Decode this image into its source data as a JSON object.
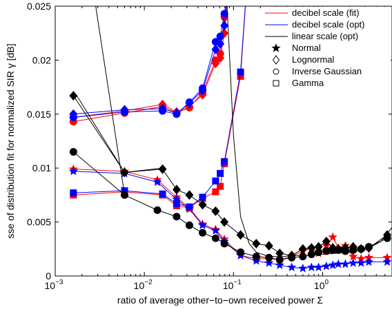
{
  "chart_data": {
    "type": "line",
    "xscale": "log",
    "xlim": [
      0.001,
      6.0
    ],
    "ylim": [
      0,
      0.025
    ],
    "xlabel": "ratio of average other−to−own received power Σ",
    "ylabel": "sse of distribution fit for normalized SIR γ [dB]",
    "x_ticks": [
      {
        "value": 0.001,
        "base": "10",
        "exp": "−3"
      },
      {
        "value": 0.01,
        "base": "10",
        "exp": "−2"
      },
      {
        "value": 0.1,
        "base": "10",
        "exp": "−1"
      },
      {
        "value": 1,
        "base": "10",
        "exp": "0"
      }
    ],
    "y_ticks": [
      {
        "value": 0,
        "label": "0"
      },
      {
        "value": 0.005,
        "label": "0.005"
      },
      {
        "value": 0.01,
        "label": "0.01"
      },
      {
        "value": 0.015,
        "label": "0.015"
      },
      {
        "value": 0.02,
        "label": "0.02"
      },
      {
        "value": 0.025,
        "label": "0.025"
      }
    ],
    "grid": false,
    "legend_position": "top-right",
    "legend_lines": [
      {
        "label": "decibel scale (fit)",
        "color": "#ff0000"
      },
      {
        "label": "decibel scale (opt)",
        "color": "#0000ff"
      },
      {
        "label": "linear scale (opt)",
        "color": "#000000"
      }
    ],
    "legend_markers": [
      {
        "label": "Normal",
        "marker": "star"
      },
      {
        "label": "Lognormal",
        "marker": "diamond"
      },
      {
        "label": "Inverse Gaussian",
        "marker": "circle"
      },
      {
        "label": "Gamma",
        "marker": "square"
      }
    ],
    "series": [
      {
        "color": "#ff0000",
        "marker": "diamond",
        "x": [
          0.0016,
          0.006,
          0.016,
          0.023,
          0.032,
          0.045,
          0.063,
          0.071,
          0.079,
          0.1
        ],
        "y": [
          0.0147,
          0.0153,
          0.0159,
          0.0152,
          0.0157,
          0.0168,
          0.0197,
          0.0202,
          0.0225,
          0.03
        ]
      },
      {
        "color": "#ff0000",
        "marker": "circle",
        "x": [
          0.0016,
          0.006,
          0.016,
          0.023,
          0.032,
          0.045,
          0.063,
          0.071,
          0.079,
          0.1
        ],
        "y": [
          0.0143,
          0.0151,
          0.0157,
          0.0151,
          0.0156,
          0.017,
          0.02,
          0.0206,
          0.024,
          0.03
        ]
      },
      {
        "color": "#0000ff",
        "marker": "diamond",
        "x": [
          0.0016,
          0.006,
          0.016,
          0.023,
          0.032,
          0.045,
          0.063,
          0.071,
          0.079,
          0.1
        ],
        "y": [
          0.015,
          0.0154,
          0.0155,
          0.0151,
          0.016,
          0.0172,
          0.021,
          0.0215,
          0.0232,
          0.03
        ]
      },
      {
        "color": "#0000ff",
        "marker": "circle",
        "x": [
          0.0016,
          0.006,
          0.016,
          0.023,
          0.032,
          0.045,
          0.063,
          0.071,
          0.079,
          0.1
        ],
        "y": [
          0.0147,
          0.0152,
          0.0153,
          0.015,
          0.0161,
          0.0174,
          0.0217,
          0.0222,
          0.0243,
          0.03
        ]
      },
      {
        "color": "#ff0000",
        "marker": "star",
        "x": [
          0.0016,
          0.006,
          0.014,
          0.023,
          0.032,
          0.045,
          0.063,
          0.079,
          0.12,
          0.18,
          0.25,
          0.33,
          0.45,
          0.6,
          0.75,
          0.9,
          1.1,
          1.3,
          1.5,
          1.8,
          2.2,
          2.7,
          3.3,
          5.3
        ],
        "y": [
          0.0099,
          0.0097,
          0.0089,
          0.0073,
          0.0063,
          0.0048,
          0.0043,
          0.0034,
          0.0019,
          0.0016,
          0.0016,
          0.0015,
          0.0018,
          0.0023,
          0.0026,
          0.0021,
          0.0028,
          0.0036,
          0.0026,
          0.0028,
          0.0018,
          0.0016,
          0.0017,
          0.0017
        ]
      },
      {
        "color": "#0000ff",
        "marker": "star",
        "x": [
          0.0016,
          0.006,
          0.014,
          0.023,
          0.032,
          0.045,
          0.063,
          0.079,
          0.12,
          0.18,
          0.25,
          0.33,
          0.45,
          0.6,
          0.75,
          0.9,
          1.1,
          1.3,
          1.5,
          1.8,
          2.2,
          2.7,
          3.3,
          5.3
        ],
        "y": [
          0.0097,
          0.0095,
          0.0087,
          0.0071,
          0.0062,
          0.0047,
          0.0042,
          0.0032,
          0.0019,
          0.0014,
          0.0012,
          0.001,
          0.0008,
          0.0007,
          0.0008,
          0.0008,
          0.0009,
          0.001,
          0.0011,
          0.0011,
          0.0012,
          0.0012,
          0.0013,
          0.0013
        ]
      },
      {
        "color": "#ff0000",
        "marker": "square",
        "x": [
          0.0016,
          0.006,
          0.016,
          0.023,
          0.032,
          0.045,
          0.063,
          0.071,
          0.079,
          0.12,
          0.15
        ],
        "y": [
          0.0075,
          0.0078,
          0.0075,
          0.0065,
          0.0063,
          0.0072,
          0.0078,
          0.0083,
          0.0104,
          0.0185,
          0.03
        ]
      },
      {
        "color": "#0000ff",
        "marker": "square",
        "x": [
          0.0016,
          0.006,
          0.016,
          0.023,
          0.032,
          0.045,
          0.063,
          0.071,
          0.079,
          0.12,
          0.15
        ],
        "y": [
          0.0077,
          0.0079,
          0.0076,
          0.0067,
          0.0064,
          0.0073,
          0.0088,
          0.0095,
          0.0106,
          0.0189,
          0.03
        ]
      },
      {
        "color": "#000000",
        "marker": "none",
        "x": [
          0.0016,
          0.00175,
          0.006,
          0.016
        ],
        "y": [
          0.0165,
          0.0167,
          0.0096,
          0.01
        ]
      },
      {
        "color": "#000000",
        "marker": "diamond",
        "x": [
          0.0016,
          0.006,
          0.016,
          0.023,
          0.032,
          0.045,
          0.063,
          0.079,
          0.12,
          0.18,
          0.25,
          0.33,
          0.45,
          0.6,
          0.75,
          0.9,
          1.1,
          1.3,
          1.5,
          1.8,
          2.2,
          2.7,
          3.3,
          5.3
        ],
        "y": [
          0.0167,
          0.0096,
          0.0099,
          0.008,
          0.0075,
          0.0066,
          0.006,
          0.005,
          0.0038,
          0.003,
          0.0028,
          0.0021,
          0.0019,
          0.0025,
          0.0026,
          0.0027,
          0.0032,
          0.0026,
          0.0025,
          0.0026,
          0.0027,
          0.0025,
          0.0026,
          0.0038
        ]
      },
      {
        "color": "#000000",
        "marker": "circle",
        "x": [
          0.0016,
          0.006,
          0.014,
          0.023,
          0.032,
          0.045,
          0.063,
          0.079,
          0.12,
          0.18,
          0.25,
          0.33,
          0.45,
          0.6,
          0.75,
          0.9,
          1.1,
          1.3,
          1.5,
          1.8,
          2.2,
          2.7,
          3.3,
          5.3
        ],
        "y": [
          0.0115,
          0.0075,
          0.0061,
          0.0055,
          0.0047,
          0.004,
          0.0035,
          0.003,
          0.0022,
          0.0018,
          0.0017,
          0.0015,
          0.0017,
          0.0018,
          0.002,
          0.0022,
          0.0023,
          0.0024,
          0.0024,
          0.0023,
          0.0024,
          0.0025,
          0.0027,
          0.0035
        ]
      },
      {
        "color": "#000000",
        "marker": "none",
        "x": [
          0.0023,
          0.006
        ],
        "y": [
          0.03,
          0.0075
        ]
      },
      {
        "color": "#000000",
        "marker": "none",
        "x": [
          0.079,
          0.1,
          0.12,
          0.15,
          0.18,
          0.25,
          0.35,
          0.5,
          0.7,
          1.0,
          1.4,
          2.0,
          3.0,
          4.5,
          6.0
        ],
        "y": [
          0.03,
          0.013,
          0.0055,
          0.003,
          0.0022,
          0.0018,
          0.0018,
          0.0019,
          0.0019,
          0.002,
          0.0021,
          0.0022,
          0.0024,
          0.0032,
          0.0045
        ]
      }
    ]
  }
}
